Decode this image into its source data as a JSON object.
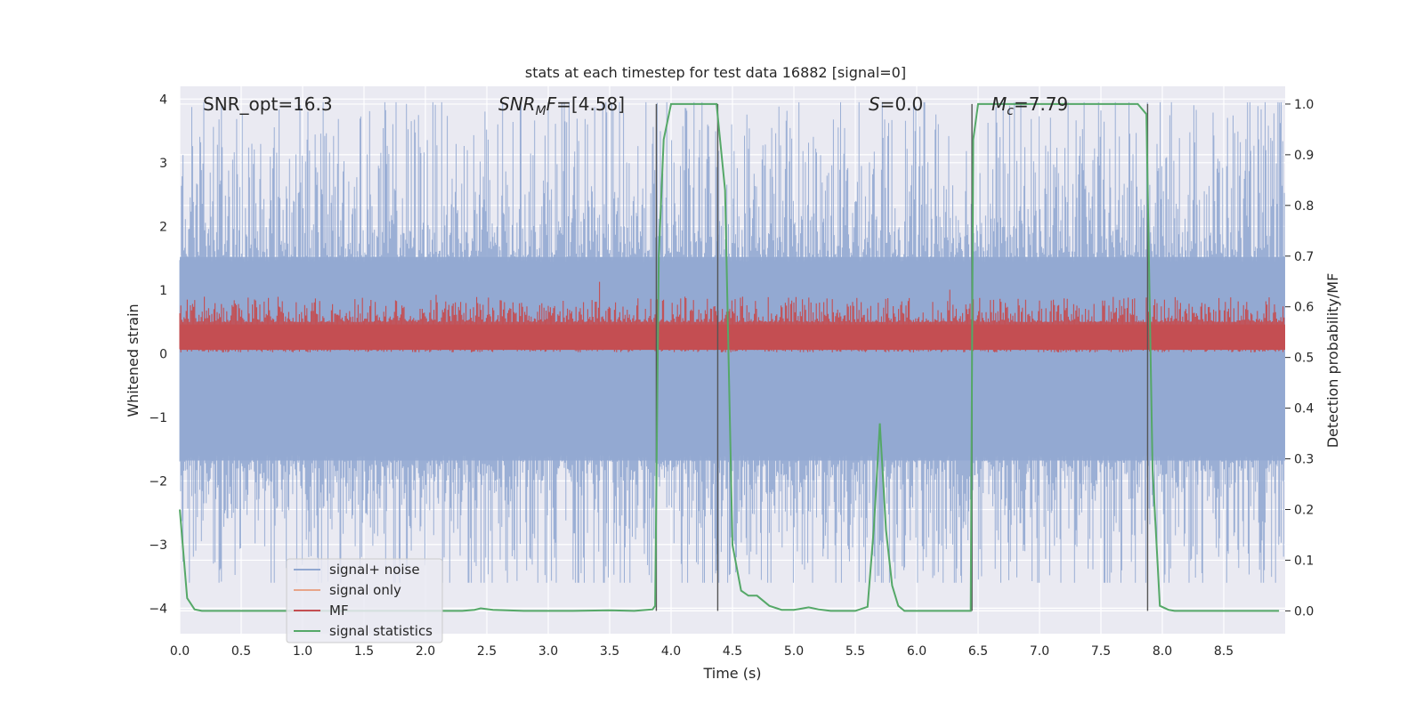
{
  "chart_data": {
    "type": "line",
    "title": "stats at each timestep for test data 16882 [signal=0]",
    "xlabel": "Time (s)",
    "ylabel": "Whitened strain",
    "ylabel_right": "Detection probability/MF",
    "xlim": [
      0,
      9
    ],
    "ylim": [
      -4.4,
      4.2
    ],
    "ylim_right": [
      -0.045,
      1.035
    ],
    "xticks": [
      0.0,
      0.5,
      1.0,
      1.5,
      2.0,
      2.5,
      3.0,
      3.5,
      4.0,
      4.5,
      5.0,
      5.5,
      6.0,
      6.5,
      7.0,
      7.5,
      8.0,
      8.5
    ],
    "yticks": [
      -4,
      -3,
      -2,
      -1,
      0,
      1,
      2,
      3,
      4
    ],
    "yticks_right": [
      0.0,
      0.1,
      0.2,
      0.3,
      0.4,
      0.5,
      0.6,
      0.7,
      0.8,
      0.9,
      1.0
    ],
    "grid": true,
    "legend_position": "lower-left",
    "annotations": {
      "snr_opt": "SNR_opt=16.3",
      "snr_mf_prefix": "SNR",
      "snr_mf_sub": "M",
      "snr_mf_mid": "F",
      "snr_mf_suffix": "=[4.58]",
      "s_italic": "S",
      "s_value": "=0.0",
      "mc_italic": "M",
      "mc_sub": "c",
      "mc_value": "=7.79"
    },
    "series": [
      {
        "name": "signal+ noise",
        "color": "#92a8d1",
        "envelope_amplitude": 1.6
      },
      {
        "name": "signal only",
        "color": "#e8a58a",
        "values": []
      },
      {
        "name": "MF",
        "color": "#c44e52",
        "baseline_right": 0.54,
        "range_right": [
          0.51,
          0.63
        ]
      },
      {
        "name": "signal statistics",
        "color": "#55a868",
        "axis": "right",
        "x": [
          0.0,
          0.06,
          0.12,
          0.18,
          0.3,
          0.6,
          1.0,
          1.5,
          2.0,
          2.3,
          2.4,
          2.45,
          2.55,
          2.8,
          3.2,
          3.5,
          3.7,
          3.85,
          3.87,
          3.9,
          3.94,
          4.0,
          4.3,
          4.37,
          4.44,
          4.5,
          4.57,
          4.63,
          4.7,
          4.8,
          4.9,
          5.0,
          5.05,
          5.12,
          5.2,
          5.3,
          5.5,
          5.6,
          5.65,
          5.7,
          5.75,
          5.8,
          5.85,
          5.9,
          6.0,
          6.2,
          6.44,
          6.46,
          6.5,
          6.57,
          7.5,
          7.8,
          7.87,
          7.92,
          7.98,
          8.05,
          8.1,
          8.2,
          8.5,
          8.95
        ],
        "values": [
          0.2,
          0.025,
          0.003,
          0.0,
          0.0,
          0.0,
          0.0,
          0.0,
          0.0,
          0.0,
          0.002,
          0.005,
          0.002,
          0.0,
          0.0,
          0.001,
          0.0,
          0.003,
          0.01,
          0.7,
          0.93,
          1.0,
          1.0,
          1.0,
          0.83,
          0.13,
          0.04,
          0.03,
          0.03,
          0.01,
          0.002,
          0.002,
          0.004,
          0.007,
          0.003,
          0.0,
          0.0,
          0.008,
          0.16,
          0.37,
          0.16,
          0.05,
          0.01,
          0.0,
          0.0,
          0.0,
          0.0,
          0.93,
          1.0,
          1.0,
          1.0,
          1.0,
          0.98,
          0.28,
          0.01,
          0.002,
          0.0,
          0.0,
          0.0,
          0.0
        ]
      }
    ],
    "vertical_lines_x": [
      3.88,
      4.38,
      6.45,
      7.88
    ]
  }
}
